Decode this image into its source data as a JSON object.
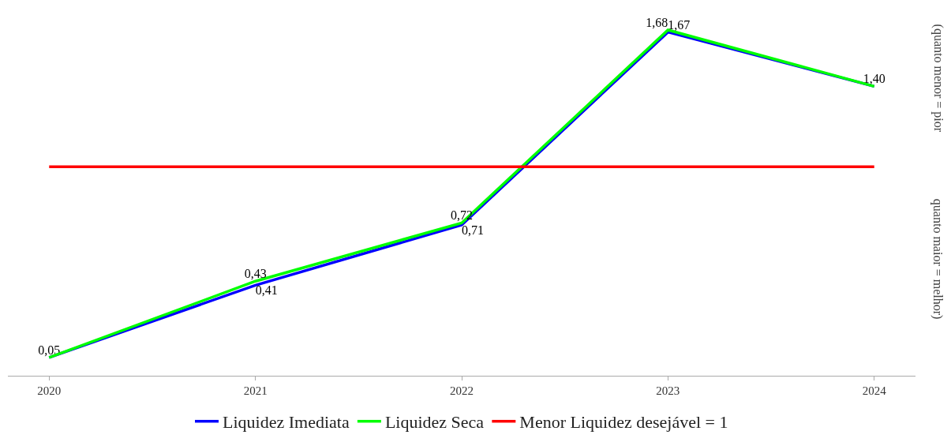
{
  "chart_data": {
    "type": "line",
    "categories": [
      "2020",
      "2021",
      "2022",
      "2023",
      "2024"
    ],
    "legend": "bottom",
    "grid": false,
    "line_style": "solid",
    "marker": "none",
    "series": [
      {
        "name": "Liquidez Imediata",
        "color": "#0000ff",
        "values": [
          0.05,
          0.41,
          0.71,
          1.67,
          1.4
        ],
        "value_labels": [
          "0,05",
          "0,41",
          "0,71",
          "1,67",
          "1,40"
        ]
      },
      {
        "name": "Liquidez Seca",
        "color": "#00ff00",
        "values": [
          0.05,
          0.43,
          0.72,
          1.68,
          1.4
        ],
        "value_labels": [
          null,
          "0,43",
          "0,72",
          "1,68",
          null
        ]
      },
      {
        "name": "Menor Liquidez desejável = 1",
        "color": "#ff0000",
        "values": [
          1,
          1,
          1,
          1,
          1
        ]
      }
    ],
    "annotations": [
      "(quanto menor = pior",
      "quanto maior = melhor)"
    ]
  }
}
